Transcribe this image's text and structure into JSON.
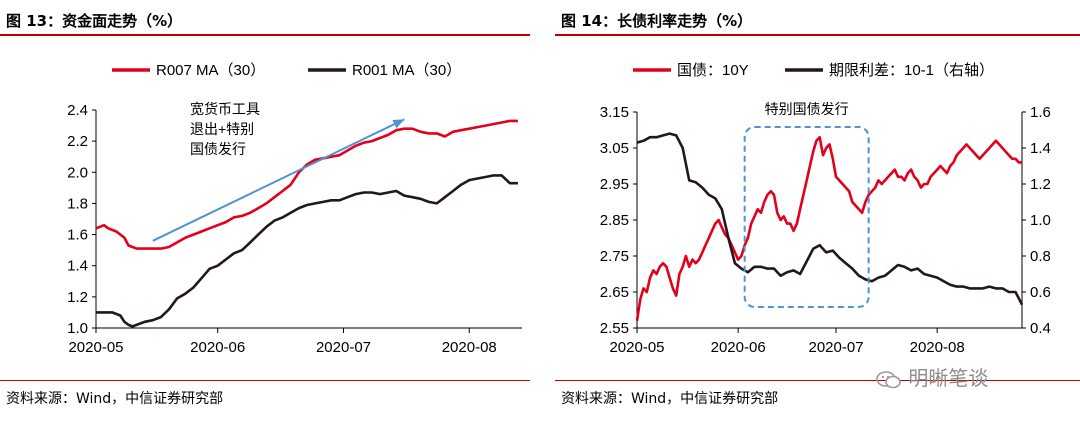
{
  "left_panel": {
    "title": "图 13：资金面走势（%）",
    "source": "资料来源：Wind，中信证券研究部"
  },
  "right_panel": {
    "title": "图 14：长债利率走势（%）",
    "source": "资料来源：Wind，中信证券研究部"
  },
  "watermark": {
    "text": "明晰笔谈",
    "icon": "wechat-icon"
  },
  "colors": {
    "red": "#e2001a",
    "black": "#231815",
    "arrow": "#4f93d4",
    "box": "#4f93d4",
    "rule": "#c00000"
  },
  "chart_data": [
    {
      "type": "line",
      "title": "",
      "xlabel": "",
      "ylabel": "",
      "x_ticks": [
        "2020-05",
        "2020-06",
        "2020-07",
        "2020-08"
      ],
      "x_range": [
        0,
        105
      ],
      "x_tick_positions": [
        0,
        30,
        61,
        92
      ],
      "ylim": [
        1.0,
        2.4
      ],
      "y_ticks": [
        "1.0",
        "1.2",
        "1.4",
        "1.6",
        "1.8",
        "2.0",
        "2.2",
        "2.4"
      ],
      "legend_position": "top",
      "grid": false,
      "series": [
        {
          "name": "R007 MA（30）",
          "color": "#e2001a",
          "x": [
            0,
            2,
            3,
            5,
            7,
            8,
            9,
            10,
            12,
            14,
            16,
            18,
            20,
            22,
            24,
            26,
            28,
            30,
            32,
            34,
            36,
            38,
            40,
            42,
            44,
            46,
            48,
            50,
            52,
            54,
            56,
            58,
            60,
            62,
            64,
            66,
            68,
            70,
            72,
            74,
            76,
            78,
            80,
            82,
            84,
            86,
            88,
            90,
            92,
            94,
            96,
            98,
            100,
            102,
            104
          ],
          "values": [
            1.64,
            1.66,
            1.64,
            1.62,
            1.58,
            1.53,
            1.52,
            1.51,
            1.51,
            1.51,
            1.51,
            1.52,
            1.55,
            1.58,
            1.6,
            1.62,
            1.64,
            1.66,
            1.68,
            1.71,
            1.72,
            1.74,
            1.77,
            1.8,
            1.84,
            1.88,
            1.92,
            2.0,
            2.05,
            2.08,
            2.09,
            2.1,
            2.11,
            2.14,
            2.17,
            2.19,
            2.2,
            2.22,
            2.24,
            2.27,
            2.28,
            2.28,
            2.26,
            2.25,
            2.25,
            2.23,
            2.26,
            2.27,
            2.28,
            2.29,
            2.3,
            2.31,
            2.32,
            2.33,
            2.33
          ]
        },
        {
          "name": "R001 MA（30）",
          "color": "#231815",
          "x": [
            0,
            2,
            4,
            6,
            7,
            8,
            9,
            10,
            12,
            14,
            16,
            18,
            20,
            22,
            24,
            26,
            28,
            30,
            32,
            34,
            36,
            38,
            40,
            42,
            44,
            46,
            48,
            50,
            52,
            54,
            56,
            58,
            60,
            62,
            64,
            66,
            68,
            70,
            72,
            74,
            76,
            78,
            80,
            82,
            84,
            86,
            88,
            90,
            92,
            94,
            96,
            98,
            100,
            102,
            104
          ],
          "values": [
            1.1,
            1.1,
            1.1,
            1.08,
            1.04,
            1.02,
            1.01,
            1.02,
            1.04,
            1.05,
            1.07,
            1.12,
            1.19,
            1.22,
            1.26,
            1.32,
            1.38,
            1.4,
            1.44,
            1.48,
            1.5,
            1.55,
            1.6,
            1.65,
            1.69,
            1.71,
            1.74,
            1.77,
            1.79,
            1.8,
            1.81,
            1.82,
            1.82,
            1.84,
            1.86,
            1.87,
            1.87,
            1.86,
            1.87,
            1.88,
            1.85,
            1.84,
            1.83,
            1.81,
            1.8,
            1.84,
            1.88,
            1.92,
            1.95,
            1.96,
            1.97,
            1.98,
            1.98,
            1.93,
            1.93
          ]
        }
      ],
      "annotations": [
        {
          "text_lines": [
            "宽货币工具",
            "退出+特别",
            "国债发行"
          ],
          "arrow": {
            "from": [
              14,
              1.56
            ],
            "to": [
              76,
              2.34
            ]
          }
        }
      ]
    },
    {
      "type": "line",
      "title": "",
      "xlabel": "",
      "ylabel": "",
      "x_ticks": [
        "2020-05",
        "2020-06",
        "2020-07",
        "2020-08"
      ],
      "x_range": [
        0,
        118
      ],
      "x_tick_positions": [
        0,
        31,
        61,
        92
      ],
      "ylim": [
        2.55,
        3.15
      ],
      "y_ticks": [
        "2.55",
        "2.65",
        "2.75",
        "2.85",
        "2.95",
        "3.05",
        "3.15"
      ],
      "y2lim": [
        0.4,
        1.6
      ],
      "y2_ticks": [
        "0.4",
        "0.6",
        "0.8",
        "1.0",
        "1.2",
        "1.4",
        "1.6"
      ],
      "legend_position": "top",
      "grid": false,
      "series": [
        {
          "name": "国债：10Y",
          "color": "#e2001a",
          "axis": "left",
          "x": [
            0,
            1,
            2,
            3,
            4,
            5,
            6,
            7,
            8,
            9,
            10,
            11,
            12,
            13,
            14,
            15,
            16,
            17,
            18,
            19,
            20,
            21,
            22,
            23,
            24,
            25,
            26,
            27,
            28,
            29,
            30,
            31,
            32,
            33,
            34,
            35,
            36,
            37,
            38,
            39,
            40,
            41,
            42,
            43,
            44,
            45,
            46,
            47,
            48,
            49,
            50,
            51,
            52,
            53,
            54,
            55,
            56,
            57,
            58,
            59,
            60,
            61,
            62,
            63,
            64,
            65,
            66,
            67,
            68,
            69,
            70,
            71,
            72,
            73,
            74,
            75,
            76,
            77,
            78,
            79,
            80,
            81,
            82,
            83,
            84,
            85,
            86,
            87,
            88,
            89,
            90,
            91,
            92,
            93,
            94,
            95,
            96,
            97,
            98,
            99,
            100,
            101,
            102,
            103,
            104,
            105,
            106,
            107,
            108,
            109,
            110,
            111,
            112,
            113,
            114,
            115,
            116,
            117,
            118
          ],
          "values": [
            2.57,
            2.63,
            2.66,
            2.65,
            2.69,
            2.71,
            2.7,
            2.72,
            2.73,
            2.72,
            2.69,
            2.66,
            2.64,
            2.7,
            2.72,
            2.75,
            2.72,
            2.74,
            2.73,
            2.74,
            2.76,
            2.78,
            2.8,
            2.82,
            2.84,
            2.85,
            2.83,
            2.81,
            2.8,
            2.78,
            2.76,
            2.74,
            2.75,
            2.78,
            2.8,
            2.84,
            2.86,
            2.88,
            2.87,
            2.9,
            2.92,
            2.93,
            2.92,
            2.87,
            2.85,
            2.86,
            2.84,
            2.84,
            2.82,
            2.84,
            2.88,
            2.92,
            2.96,
            3.0,
            3.04,
            3.07,
            3.08,
            3.03,
            3.05,
            3.06,
            3.02,
            2.97,
            2.96,
            2.95,
            2.94,
            2.93,
            2.9,
            2.89,
            2.88,
            2.87,
            2.9,
            2.92,
            2.93,
            2.94,
            2.96,
            2.95,
            2.96,
            2.97,
            2.98,
            2.99,
            2.97,
            2.97,
            2.96,
            2.98,
            2.99,
            2.97,
            2.96,
            2.94,
            2.95,
            2.95,
            2.97,
            2.98,
            2.99,
            3.0,
            2.99,
            2.98,
            3.0,
            3.01,
            3.03,
            3.04,
            3.05,
            3.06,
            3.05,
            3.04,
            3.03,
            3.02,
            3.03,
            3.04,
            3.05,
            3.06,
            3.07,
            3.06,
            3.05,
            3.04,
            3.03,
            3.02,
            3.02,
            3.01,
            3.01
          ]
        },
        {
          "name": "期限利差：10-1（右轴）",
          "color": "#231815",
          "axis": "right",
          "x": [
            0,
            2,
            4,
            6,
            8,
            10,
            12,
            14,
            16,
            18,
            20,
            22,
            24,
            26,
            28,
            30,
            32,
            34,
            36,
            38,
            40,
            42,
            44,
            46,
            48,
            50,
            52,
            54,
            56,
            58,
            60,
            62,
            64,
            66,
            68,
            70,
            72,
            74,
            76,
            78,
            80,
            82,
            84,
            86,
            88,
            90,
            92,
            94,
            96,
            98,
            100,
            102,
            104,
            106,
            108,
            110,
            112,
            114,
            116,
            118
          ],
          "values": [
            1.43,
            1.44,
            1.46,
            1.46,
            1.47,
            1.48,
            1.47,
            1.4,
            1.22,
            1.21,
            1.18,
            1.14,
            1.12,
            1.06,
            0.9,
            0.76,
            0.73,
            0.71,
            0.74,
            0.74,
            0.73,
            0.73,
            0.69,
            0.71,
            0.72,
            0.7,
            0.77,
            0.84,
            0.86,
            0.82,
            0.83,
            0.79,
            0.76,
            0.73,
            0.69,
            0.67,
            0.66,
            0.68,
            0.69,
            0.72,
            0.75,
            0.74,
            0.72,
            0.73,
            0.7,
            0.69,
            0.68,
            0.66,
            0.64,
            0.63,
            0.63,
            0.62,
            0.62,
            0.62,
            0.63,
            0.62,
            0.62,
            0.6,
            0.6,
            0.53
          ]
        }
      ],
      "annotations": [
        {
          "text": "特别国债发行",
          "box_x_range": [
            33,
            71
          ]
        }
      ]
    }
  ]
}
